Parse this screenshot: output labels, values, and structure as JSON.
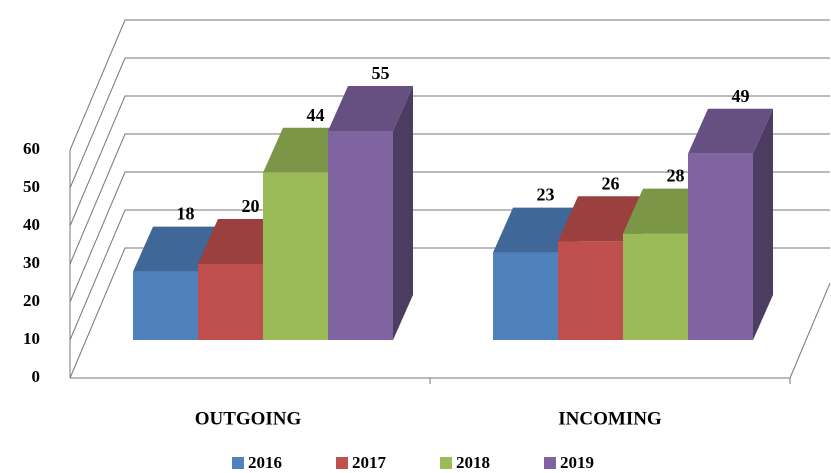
{
  "chart_data": {
    "type": "bar",
    "categories": [
      "OUTGOING",
      "INCOMING"
    ],
    "series": [
      {
        "name": "2016",
        "color": "#4f81bd",
        "values": [
          18,
          23
        ]
      },
      {
        "name": "2017",
        "color": "#c0504d",
        "values": [
          20,
          26
        ]
      },
      {
        "name": "2018",
        "color": "#9bbb59",
        "values": [
          44,
          28
        ]
      },
      {
        "name": "2019",
        "color": "#8064a2",
        "values": [
          55,
          49
        ]
      }
    ],
    "ylim": [
      0,
      60
    ],
    "yticks": [
      0,
      10,
      20,
      30,
      40,
      50,
      60
    ],
    "grid": true,
    "legend": "bottom"
  }
}
